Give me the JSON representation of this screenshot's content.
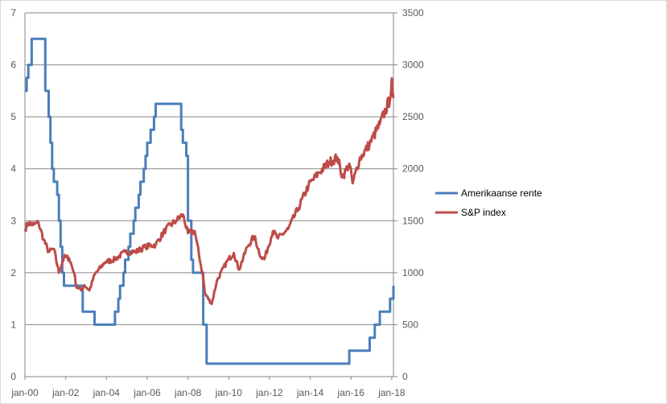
{
  "chart_data": {
    "type": "line",
    "x_axis": {
      "type": "date",
      "range": [
        "2000-01",
        "2018-02"
      ],
      "tick_labels": [
        "jan-00",
        "jan-02",
        "jan-04",
        "jan-06",
        "jan-08",
        "jan-10",
        "jan-12",
        "jan-14",
        "jan-16",
        "jan-18"
      ]
    },
    "y_left": {
      "range": [
        0,
        7
      ],
      "step": 1,
      "tick_labels": [
        "0",
        "1",
        "2",
        "3",
        "4",
        "5",
        "6",
        "7"
      ]
    },
    "y_right": {
      "range": [
        0,
        3500
      ],
      "step": 500,
      "tick_labels": [
        "0",
        "500",
        "1000",
        "1500",
        "2000",
        "2500",
        "3000",
        "3500"
      ]
    },
    "grid": true,
    "legend_position": "right",
    "series": [
      {
        "name": "Amerikaanse rente",
        "axis": "left",
        "color": "#4a7ebb",
        "step": true,
        "points": [
          [
            "2000-01",
            5.5
          ],
          [
            "2000-02",
            5.75
          ],
          [
            "2000-03",
            6.0
          ],
          [
            "2000-05",
            6.5
          ],
          [
            "2001-01",
            5.5
          ],
          [
            "2001-03",
            5.0
          ],
          [
            "2001-04",
            4.5
          ],
          [
            "2001-05",
            4.0
          ],
          [
            "2001-06",
            3.75
          ],
          [
            "2001-08",
            3.5
          ],
          [
            "2001-09",
            3.0
          ],
          [
            "2001-10",
            2.5
          ],
          [
            "2001-11",
            2.0
          ],
          [
            "2001-12",
            1.75
          ],
          [
            "2002-11",
            1.25
          ],
          [
            "2003-06",
            1.0
          ],
          [
            "2004-06",
            1.25
          ],
          [
            "2004-08",
            1.5
          ],
          [
            "2004-09",
            1.75
          ],
          [
            "2004-11",
            2.0
          ],
          [
            "2004-12",
            2.25
          ],
          [
            "2005-02",
            2.5
          ],
          [
            "2005-03",
            2.75
          ],
          [
            "2005-05",
            3.0
          ],
          [
            "2005-06",
            3.25
          ],
          [
            "2005-08",
            3.5
          ],
          [
            "2005-09",
            3.75
          ],
          [
            "2005-11",
            4.0
          ],
          [
            "2005-12",
            4.25
          ],
          [
            "2006-01",
            4.5
          ],
          [
            "2006-03",
            4.75
          ],
          [
            "2006-05",
            5.0
          ],
          [
            "2006-06",
            5.25
          ],
          [
            "2007-09",
            4.75
          ],
          [
            "2007-10",
            4.5
          ],
          [
            "2007-12",
            4.25
          ],
          [
            "2008-01",
            3.0
          ],
          [
            "2008-03",
            2.25
          ],
          [
            "2008-04",
            2.0
          ],
          [
            "2008-10",
            1.0
          ],
          [
            "2008-12",
            0.25
          ],
          [
            "2015-12",
            0.5
          ],
          [
            "2016-12",
            0.75
          ],
          [
            "2017-03",
            1.0
          ],
          [
            "2017-06",
            1.25
          ],
          [
            "2017-12",
            1.5
          ],
          [
            "2018-02",
            1.75
          ]
        ]
      },
      {
        "name": "S&P index",
        "axis": "right",
        "color": "#be4b48",
        "points": [
          [
            "2000-01",
            1420
          ],
          [
            "2000-03",
            1480
          ],
          [
            "2000-06",
            1460
          ],
          [
            "2000-09",
            1480
          ],
          [
            "2000-12",
            1320
          ],
          [
            "2001-03",
            1200
          ],
          [
            "2001-06",
            1230
          ],
          [
            "2001-09",
            1000
          ],
          [
            "2001-12",
            1150
          ],
          [
            "2002-03",
            1140
          ],
          [
            "2002-06",
            1000
          ],
          [
            "2002-07",
            880
          ],
          [
            "2002-10",
            830
          ],
          [
            "2002-12",
            880
          ],
          [
            "2003-03",
            830
          ],
          [
            "2003-06",
            980
          ],
          [
            "2003-12",
            1100
          ],
          [
            "2004-06",
            1130
          ],
          [
            "2004-12",
            1200
          ],
          [
            "2005-06",
            1200
          ],
          [
            "2005-12",
            1250
          ],
          [
            "2006-06",
            1270
          ],
          [
            "2006-12",
            1420
          ],
          [
            "2007-06",
            1500
          ],
          [
            "2007-10",
            1560
          ],
          [
            "2008-01",
            1380
          ],
          [
            "2008-05",
            1400
          ],
          [
            "2008-10",
            950
          ],
          [
            "2008-11",
            800
          ],
          [
            "2009-03",
            700
          ],
          [
            "2009-06",
            920
          ],
          [
            "2009-12",
            1110
          ],
          [
            "2010-04",
            1190
          ],
          [
            "2010-07",
            1030
          ],
          [
            "2010-12",
            1250
          ],
          [
            "2011-04",
            1350
          ],
          [
            "2011-08",
            1150
          ],
          [
            "2011-10",
            1130
          ],
          [
            "2012-03",
            1400
          ],
          [
            "2012-06",
            1330
          ],
          [
            "2012-12",
            1420
          ],
          [
            "2013-06",
            1620
          ],
          [
            "2013-12",
            1840
          ],
          [
            "2014-06",
            1960
          ],
          [
            "2014-12",
            2060
          ],
          [
            "2015-05",
            2110
          ],
          [
            "2015-08",
            1920
          ],
          [
            "2015-12",
            2050
          ],
          [
            "2016-02",
            1860
          ],
          [
            "2016-06",
            2090
          ],
          [
            "2016-12",
            2240
          ],
          [
            "2017-06",
            2430
          ],
          [
            "2017-12",
            2670
          ],
          [
            "2018-01",
            2870
          ],
          [
            "2018-02",
            2680
          ]
        ]
      }
    ]
  }
}
